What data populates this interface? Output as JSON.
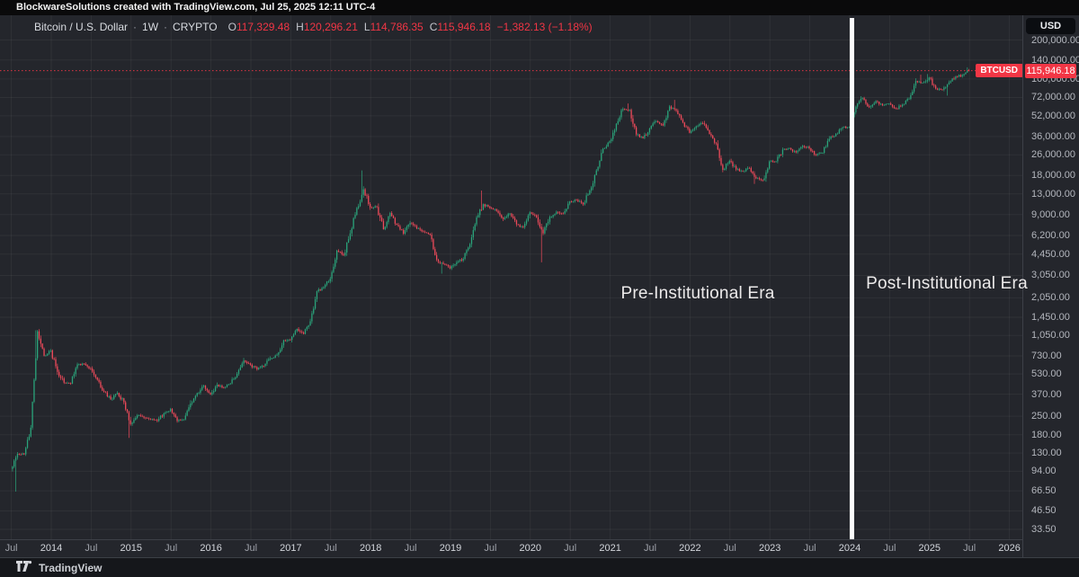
{
  "top_bar": {
    "text": "BlockwareSolutions created with TradingView.com, Jul 25, 2025 12:11 UTC-4"
  },
  "header": {
    "symbol": "Bitcoin / U.S. Dollar",
    "separator": "·",
    "interval": "1W",
    "market": "CRYPTO",
    "ohlc": {
      "o_label": "O",
      "o_value": "117,329.48",
      "h_label": "H",
      "h_value": "120,296.21",
      "l_label": "L",
      "l_value": "114,786.35",
      "c_label": "C",
      "c_value": "115,946.18",
      "change": "−1,382.13 (−1.18%)"
    }
  },
  "annotations": {
    "pre_label": "Pre-Institutional Era",
    "post_label": "Post-Institutional Era",
    "divider": {
      "t": 2024.03,
      "color": "#ffffff"
    }
  },
  "price_axis": {
    "currency": "USD",
    "labels": [
      200000,
      140000,
      100000,
      72000,
      52000,
      36000,
      26000,
      18000,
      13000,
      9000,
      6200,
      4450,
      3050,
      2050,
      1450,
      1050,
      730,
      530,
      370,
      250,
      180,
      130,
      94,
      66.5,
      46.5,
      33.5
    ],
    "last_price": {
      "tag": "BTCUSD",
      "value": "115,946.18",
      "price": 115946.18,
      "color": "#f23645"
    }
  },
  "time_axis": {
    "ticks": [
      [
        "Jul",
        2013.5
      ],
      [
        "2014",
        2014
      ],
      [
        "Jul",
        2014.5
      ],
      [
        "2015",
        2015
      ],
      [
        "Jul",
        2015.5
      ],
      [
        "2016",
        2016
      ],
      [
        "Jul",
        2016.5
      ],
      [
        "2017",
        2017
      ],
      [
        "Jul",
        2017.5
      ],
      [
        "2018",
        2018
      ],
      [
        "Jul",
        2018.5
      ],
      [
        "2019",
        2019
      ],
      [
        "Jul",
        2019.5
      ],
      [
        "2020",
        2020
      ],
      [
        "Jul",
        2020.5
      ],
      [
        "2021",
        2021
      ],
      [
        "Jul",
        2021.5
      ],
      [
        "2022",
        2022
      ],
      [
        "Jul",
        2022.5
      ],
      [
        "2023",
        2023
      ],
      [
        "Jul",
        2023.5
      ],
      [
        "2024",
        2024
      ],
      [
        "Jul",
        2024.5
      ],
      [
        "2025",
        2025
      ],
      [
        "Jul",
        2025.5
      ],
      [
        "2026",
        2026
      ]
    ]
  },
  "footer": {
    "brand": "TradingView"
  },
  "colors": {
    "up": "#2aa47b",
    "down": "#ef4a5a",
    "accent_red": "#f23645",
    "grid": "rgba(255,255,255,0.05)",
    "chart_bg": "#24262c",
    "divider_white": "#ffffff"
  },
  "chart_data": {
    "type": "candlestick",
    "title": "Bitcoin / U.S. Dollar · 1W · CRYPTO",
    "symbol": "BTCUSD",
    "timeframe": "1W",
    "y_scale": "logarithmic",
    "ylim": [
      33.5,
      200000
    ],
    "x_domain_years": [
      2013.5,
      2026.08
    ],
    "grid": true,
    "current_bar": {
      "open": 117329.48,
      "high": 120296.21,
      "low": 114786.35,
      "close": 115946.18,
      "change": -1382.13,
      "change_pct": -1.18
    },
    "last_price": 115946.18,
    "era_divider_date": "2024-01",
    "monthly_closes": {
      "start": "2013-07",
      "values": [
        98,
        128,
        127,
        204,
        1130,
        732,
        806,
        550,
        454,
        446,
        627,
        635,
        583,
        478,
        387,
        338,
        378,
        320,
        218,
        254,
        244,
        236,
        230,
        263,
        284,
        230,
        236,
        314,
        377,
        430,
        368,
        437,
        416,
        448,
        531,
        673,
        624,
        575,
        610,
        700,
        745,
        963,
        970,
        1180,
        1080,
        1350,
        2300,
        2480,
        2875,
        4735,
        4360,
        6450,
        10100,
        14100,
        10200,
        10300,
        6930,
        9240,
        7500,
        6400,
        7750,
        7030,
        6630,
        6300,
        4040,
        3740,
        3460,
        3860,
        4100,
        5320,
        8560,
        10800,
        10100,
        9600,
        8300,
        9150,
        7550,
        7190,
        9350,
        8550,
        6440,
        8630,
        9450,
        9140,
        11350,
        11650,
        10780,
        13800,
        19700,
        29000,
        33100,
        45200,
        58800,
        57750,
        37300,
        35000,
        41500,
        47100,
        43800,
        61300,
        57000,
        46200,
        38500,
        43200,
        45500,
        37650,
        31800,
        19900,
        23300,
        20050,
        19400,
        20500,
        17100,
        16550,
        23100,
        23150,
        28500,
        29250,
        27200,
        30480,
        29230,
        25930,
        26960,
        34500,
        37700,
        42280,
        42580,
        61200,
        71300,
        60640,
        67500,
        62680,
        64600,
        58970,
        63330,
        70200,
        96400,
        93400,
        102400,
        84350,
        82550,
        94200,
        104600,
        107100,
        115946.18
      ]
    },
    "extremes": [
      {
        "date": "2013-07",
        "low": 65.5
      },
      {
        "date": "2013-11",
        "high": 1150
      },
      {
        "date": "2015-01",
        "low": 170
      },
      {
        "date": "2017-12",
        "high": 19700
      },
      {
        "date": "2018-12",
        "low": 3150
      },
      {
        "date": "2019-06",
        "high": 13800
      },
      {
        "date": "2020-03",
        "low": 3850
      },
      {
        "date": "2021-04",
        "high": 64800
      },
      {
        "date": "2021-11",
        "high": 69000
      },
      {
        "date": "2022-11",
        "low": 15500
      },
      {
        "date": "2024-03",
        "high": 73700
      },
      {
        "date": "2024-12",
        "high": 108000
      },
      {
        "date": "2025-01",
        "high": 109300
      },
      {
        "date": "2025-04",
        "low": 74500
      },
      {
        "date": "2025-07",
        "high": 123200
      }
    ]
  }
}
